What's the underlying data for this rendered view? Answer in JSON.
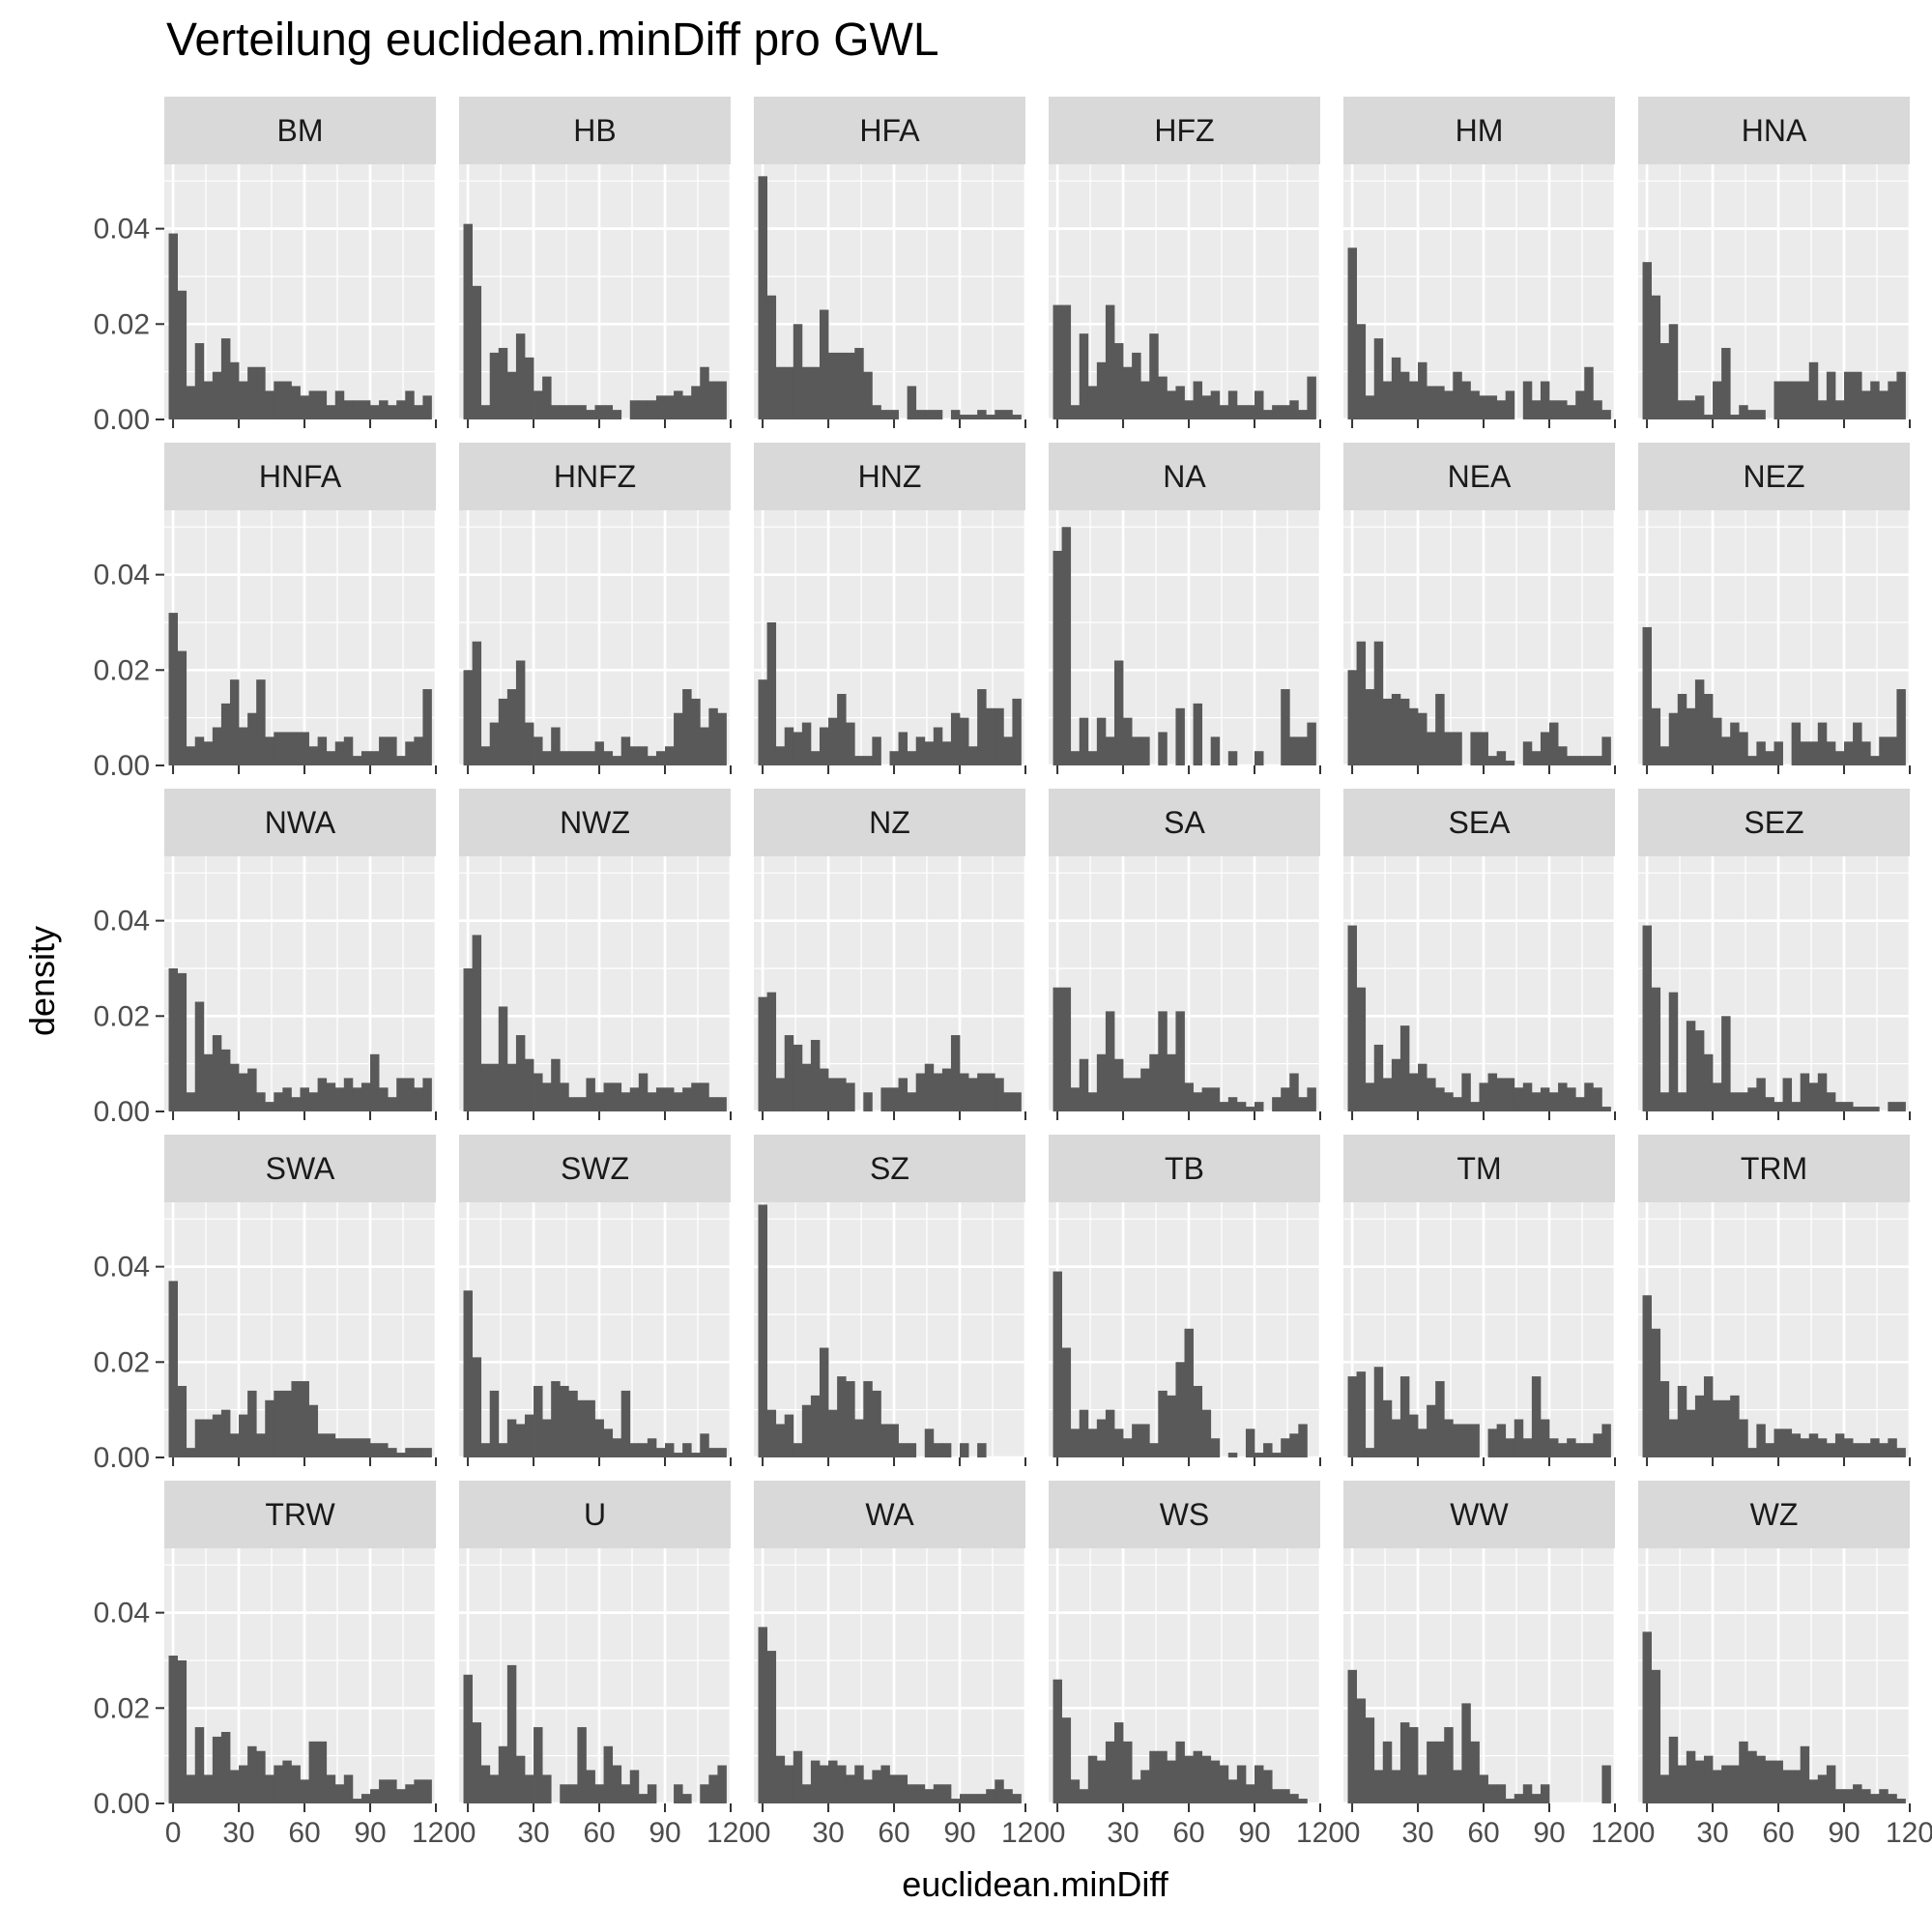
{
  "chart_data": {
    "type": "bar",
    "subtype": "faceted histogram",
    "title": "Verteilung euclidean.minDiff pro GWL",
    "xlabel": "euclidean.minDiff",
    "ylabel": "density",
    "xlim": [
      -4,
      120
    ],
    "ylim": [
      0,
      0.0535
    ],
    "x_ticks": [
      0,
      30,
      60,
      90,
      120
    ],
    "x_tick_labels": [
      "0",
      "30",
      "60",
      "90",
      "120"
    ],
    "y_ticks": [
      0,
      0.02,
      0.04
    ],
    "y_tick_labels": [
      "0.00",
      "0.02",
      "0.04"
    ],
    "bin_width": 4,
    "bin_starts": [
      -2,
      2,
      6,
      10,
      14,
      18,
      22,
      26,
      30,
      34,
      38,
      42,
      46,
      50,
      54,
      58,
      62,
      66,
      70,
      74,
      78,
      82,
      86,
      90,
      94,
      98,
      102,
      106,
      110,
      114
    ],
    "facet_cols": 6,
    "grid": "on",
    "bar_color": "#595959",
    "panel_background": "#ebebeb",
    "strip_background": "#d9d9d9",
    "facets": [
      {
        "label": "BM",
        "values": [
          0.039,
          0.027,
          0.007,
          0.016,
          0.008,
          0.01,
          0.017,
          0.012,
          0.008,
          0.011,
          0.011,
          0.006,
          0.008,
          0.008,
          0.007,
          0.005,
          0.006,
          0.006,
          0.003,
          0.006,
          0.004,
          0.004,
          0.004,
          0.003,
          0.004,
          0.003,
          0.004,
          0.006,
          0.003,
          0.005
        ]
      },
      {
        "label": "HB",
        "values": [
          0.041,
          0.028,
          0.003,
          0.014,
          0.015,
          0.01,
          0.018,
          0.013,
          0.006,
          0.009,
          0.003,
          0.003,
          0.003,
          0.003,
          0.002,
          0.003,
          0.003,
          0.002,
          0,
          0.004,
          0.004,
          0.004,
          0.005,
          0.005,
          0.006,
          0.005,
          0.007,
          0.011,
          0.008,
          0.008
        ]
      },
      {
        "label": "HFA",
        "values": [
          0.051,
          0.026,
          0.011,
          0.011,
          0.02,
          0.011,
          0.011,
          0.023,
          0.014,
          0.014,
          0.014,
          0.015,
          0.01,
          0.003,
          0.002,
          0.002,
          0,
          0.007,
          0.002,
          0.002,
          0.002,
          0,
          0.002,
          0.001,
          0.001,
          0.002,
          0.001,
          0.002,
          0.002,
          0.001
        ]
      },
      {
        "label": "HFZ",
        "values": [
          0.024,
          0.024,
          0.003,
          0.018,
          0.007,
          0.012,
          0.024,
          0.016,
          0.011,
          0.014,
          0.008,
          0.018,
          0.009,
          0.006,
          0.007,
          0.004,
          0.008,
          0.005,
          0.006,
          0.003,
          0.006,
          0.003,
          0.003,
          0.006,
          0.002,
          0.003,
          0.003,
          0.004,
          0.002,
          0.009
        ]
      },
      {
        "label": "HM",
        "values": [
          0.036,
          0.02,
          0.005,
          0.017,
          0.008,
          0.013,
          0.01,
          0.008,
          0.012,
          0.007,
          0.007,
          0.006,
          0.01,
          0.008,
          0.006,
          0.005,
          0.005,
          0.004,
          0.006,
          0,
          0.008,
          0.004,
          0.008,
          0.004,
          0.004,
          0.003,
          0.006,
          0.011,
          0.004,
          0.002
        ]
      },
      {
        "label": "HNA",
        "values": [
          0.033,
          0.026,
          0.016,
          0.02,
          0.004,
          0.004,
          0.005,
          0.001,
          0.008,
          0.015,
          0.001,
          0.003,
          0.002,
          0.002,
          0,
          0.008,
          0.008,
          0.008,
          0.008,
          0.012,
          0.004,
          0.01,
          0.004,
          0.01,
          0.01,
          0.006,
          0.008,
          0.006,
          0.008,
          0.01
        ]
      },
      {
        "label": "HNFA",
        "values": [
          0.032,
          0.024,
          0.004,
          0.006,
          0.005,
          0.008,
          0.013,
          0.018,
          0.008,
          0.011,
          0.018,
          0.006,
          0.007,
          0.007,
          0.007,
          0.007,
          0.004,
          0.006,
          0.003,
          0.005,
          0.006,
          0.002,
          0.003,
          0.003,
          0.006,
          0.006,
          0.002,
          0.005,
          0.006,
          0.016
        ]
      },
      {
        "label": "HNFZ",
        "values": [
          0.02,
          0.026,
          0.004,
          0.009,
          0.014,
          0.016,
          0.022,
          0.009,
          0.006,
          0.003,
          0.008,
          0.003,
          0.003,
          0.003,
          0.003,
          0.005,
          0.003,
          0.002,
          0.006,
          0.004,
          0.004,
          0.002,
          0.003,
          0.004,
          0.011,
          0.016,
          0.014,
          0.008,
          0.012,
          0.011
        ]
      },
      {
        "label": "HNZ",
        "values": [
          0.018,
          0.03,
          0.004,
          0.008,
          0.007,
          0.009,
          0.003,
          0.008,
          0.01,
          0.015,
          0.009,
          0.002,
          0.002,
          0.006,
          0,
          0.003,
          0.007,
          0.003,
          0.006,
          0.005,
          0.008,
          0.005,
          0.011,
          0.01,
          0.004,
          0.016,
          0.012,
          0.012,
          0.006,
          0.014
        ]
      },
      {
        "label": "NA",
        "values": [
          0.045,
          0.05,
          0.003,
          0.01,
          0.003,
          0.01,
          0.006,
          0.022,
          0.01,
          0.006,
          0.006,
          0,
          0.007,
          0,
          0.012,
          0,
          0.013,
          0,
          0.006,
          0,
          0.003,
          0,
          0,
          0.003,
          0,
          0,
          0.016,
          0.006,
          0.006,
          0.009
        ]
      },
      {
        "label": "NEA",
        "values": [
          0.02,
          0.026,
          0.016,
          0.026,
          0.014,
          0.015,
          0.014,
          0.012,
          0.011,
          0.007,
          0.015,
          0.007,
          0.007,
          0,
          0.007,
          0.007,
          0.002,
          0.003,
          0.001,
          0,
          0.005,
          0.003,
          0.007,
          0.009,
          0.004,
          0.002,
          0.002,
          0.002,
          0.002,
          0.006
        ]
      },
      {
        "label": "NEZ",
        "values": [
          0.029,
          0.012,
          0.004,
          0.011,
          0.015,
          0.012,
          0.018,
          0.015,
          0.01,
          0.006,
          0.009,
          0.007,
          0.002,
          0.005,
          0.003,
          0.005,
          0,
          0.009,
          0.005,
          0.005,
          0.009,
          0.005,
          0.003,
          0.005,
          0.009,
          0.005,
          0.002,
          0.006,
          0.006,
          0.016
        ]
      },
      {
        "label": "NWA",
        "values": [
          0.03,
          0.029,
          0.004,
          0.023,
          0.012,
          0.016,
          0.013,
          0.01,
          0.008,
          0.009,
          0.004,
          0.002,
          0.004,
          0.005,
          0.003,
          0.005,
          0.004,
          0.007,
          0.006,
          0.005,
          0.007,
          0.005,
          0.006,
          0.012,
          0.005,
          0.003,
          0.007,
          0.007,
          0.005,
          0.007
        ]
      },
      {
        "label": "NWZ",
        "values": [
          0.03,
          0.037,
          0.01,
          0.01,
          0.022,
          0.01,
          0.016,
          0.011,
          0.008,
          0.006,
          0.011,
          0.006,
          0.003,
          0.003,
          0.007,
          0.004,
          0.006,
          0.006,
          0.004,
          0.005,
          0.008,
          0.004,
          0.005,
          0.005,
          0.004,
          0.005,
          0.006,
          0.006,
          0.003,
          0.003
        ]
      },
      {
        "label": "NZ",
        "values": [
          0.024,
          0.025,
          0.007,
          0.016,
          0.014,
          0.01,
          0.015,
          0.009,
          0.007,
          0.007,
          0.006,
          0,
          0.004,
          0,
          0.005,
          0.005,
          0.007,
          0.004,
          0.008,
          0.01,
          0.008,
          0.009,
          0.016,
          0.008,
          0.007,
          0.008,
          0.008,
          0.007,
          0.004,
          0.004
        ]
      },
      {
        "label": "SA",
        "values": [
          0.026,
          0.026,
          0.005,
          0.011,
          0.004,
          0.012,
          0.021,
          0.011,
          0.007,
          0.007,
          0.009,
          0.012,
          0.021,
          0.012,
          0.021,
          0.006,
          0.004,
          0.005,
          0.005,
          0.002,
          0.003,
          0.002,
          0.001,
          0.002,
          0,
          0.003,
          0.005,
          0.008,
          0.003,
          0.005
        ]
      },
      {
        "label": "SEA",
        "values": [
          0.039,
          0.026,
          0.006,
          0.014,
          0.007,
          0.011,
          0.018,
          0.008,
          0.01,
          0.007,
          0.005,
          0.004,
          0.003,
          0.008,
          0.002,
          0.006,
          0.008,
          0.007,
          0.007,
          0.005,
          0.006,
          0.004,
          0.005,
          0.004,
          0.006,
          0.005,
          0.003,
          0.006,
          0.005,
          0.001
        ]
      },
      {
        "label": "SEZ",
        "values": [
          0.039,
          0.026,
          0.004,
          0.025,
          0.004,
          0.019,
          0.017,
          0.012,
          0.006,
          0.02,
          0.004,
          0.004,
          0.005,
          0.007,
          0.003,
          0.002,
          0.007,
          0.002,
          0.008,
          0.006,
          0.008,
          0.004,
          0.002,
          0.002,
          0.001,
          0.001,
          0.001,
          0,
          0.002,
          0.002
        ]
      },
      {
        "label": "SWA",
        "values": [
          0.037,
          0.015,
          0.002,
          0.008,
          0.008,
          0.009,
          0.01,
          0.005,
          0.009,
          0.014,
          0.005,
          0.012,
          0.014,
          0.014,
          0.016,
          0.016,
          0.011,
          0.005,
          0.005,
          0.004,
          0.004,
          0.004,
          0.004,
          0.003,
          0.003,
          0.002,
          0.001,
          0.002,
          0.002,
          0.002
        ]
      },
      {
        "label": "SWZ",
        "values": [
          0.035,
          0.021,
          0.003,
          0.014,
          0.003,
          0.008,
          0.007,
          0.009,
          0.015,
          0.008,
          0.016,
          0.015,
          0.014,
          0.012,
          0.012,
          0.008,
          0.006,
          0.004,
          0.014,
          0.003,
          0.003,
          0.004,
          0.002,
          0.003,
          0.001,
          0.003,
          0.001,
          0.005,
          0.002,
          0.002
        ]
      },
      {
        "label": "SZ",
        "values": [
          0.053,
          0.01,
          0.007,
          0.009,
          0.003,
          0.011,
          0.013,
          0.023,
          0.01,
          0.017,
          0.016,
          0.008,
          0.016,
          0.014,
          0.007,
          0.007,
          0.003,
          0.003,
          0,
          0.006,
          0.003,
          0.003,
          0,
          0.003,
          0,
          0.003,
          0,
          0,
          0,
          0
        ]
      },
      {
        "label": "TB",
        "values": [
          0.039,
          0.023,
          0.006,
          0.01,
          0.006,
          0.008,
          0.01,
          0.006,
          0.004,
          0.007,
          0.007,
          0.003,
          0.014,
          0.013,
          0.02,
          0.027,
          0.015,
          0.01,
          0.004,
          0,
          0.001,
          0,
          0.006,
          0.001,
          0.003,
          0.001,
          0.004,
          0.005,
          0.007,
          0
        ]
      },
      {
        "label": "TM",
        "values": [
          0.017,
          0.018,
          0.002,
          0.019,
          0.012,
          0.008,
          0.017,
          0.009,
          0.006,
          0.011,
          0.016,
          0.008,
          0.007,
          0.007,
          0.007,
          0,
          0.006,
          0.007,
          0.004,
          0.008,
          0.004,
          0.017,
          0.008,
          0.004,
          0.003,
          0.004,
          0.003,
          0.003,
          0.005,
          0.007
        ]
      },
      {
        "label": "TRM",
        "values": [
          0.034,
          0.027,
          0.016,
          0.008,
          0.015,
          0.01,
          0.013,
          0.017,
          0.012,
          0.012,
          0.013,
          0.008,
          0.002,
          0.007,
          0.003,
          0.006,
          0.006,
          0.005,
          0.004,
          0.005,
          0.004,
          0.003,
          0.005,
          0.004,
          0.003,
          0.003,
          0.004,
          0.003,
          0.004,
          0.002
        ]
      },
      {
        "label": "TRW",
        "values": [
          0.031,
          0.03,
          0.006,
          0.016,
          0.006,
          0.014,
          0.015,
          0.007,
          0.008,
          0.012,
          0.011,
          0.006,
          0.008,
          0.009,
          0.008,
          0.005,
          0.013,
          0.013,
          0.006,
          0.004,
          0.006,
          0.001,
          0.002,
          0.003,
          0.005,
          0.005,
          0.003,
          0.004,
          0.005,
          0.005
        ]
      },
      {
        "label": "U",
        "values": [
          0.027,
          0.017,
          0.008,
          0.006,
          0.012,
          0.029,
          0.01,
          0.006,
          0.016,
          0.006,
          0,
          0.004,
          0.004,
          0.016,
          0.007,
          0.004,
          0.012,
          0.008,
          0.004,
          0.007,
          0.002,
          0.004,
          0,
          0,
          0.004,
          0.002,
          0,
          0.004,
          0.006,
          0.008
        ]
      },
      {
        "label": "WA",
        "values": [
          0.037,
          0.032,
          0.01,
          0.008,
          0.011,
          0.004,
          0.009,
          0.008,
          0.009,
          0.008,
          0.006,
          0.008,
          0.005,
          0.007,
          0.008,
          0.006,
          0.006,
          0.004,
          0.004,
          0.003,
          0.004,
          0.004,
          0.001,
          0.002,
          0.002,
          0.002,
          0.003,
          0.005,
          0.003,
          0.002
        ]
      },
      {
        "label": "WS",
        "values": [
          0.026,
          0.018,
          0.005,
          0.003,
          0.01,
          0.009,
          0.013,
          0.017,
          0.013,
          0.005,
          0.007,
          0.011,
          0.011,
          0.009,
          0.013,
          0.01,
          0.011,
          0.01,
          0.009,
          0.008,
          0.005,
          0.008,
          0.004,
          0.008,
          0.007,
          0.003,
          0.003,
          0.002,
          0.001,
          0
        ]
      },
      {
        "label": "WW",
        "values": [
          0.028,
          0.022,
          0.018,
          0.007,
          0.013,
          0.007,
          0.017,
          0.016,
          0.006,
          0.013,
          0.013,
          0.016,
          0.007,
          0.021,
          0.013,
          0.006,
          0.004,
          0.004,
          0.001,
          0.002,
          0.004,
          0.002,
          0.004,
          0,
          0,
          0,
          0,
          0,
          0,
          0.008
        ]
      },
      {
        "label": "WZ",
        "values": [
          0.036,
          0.028,
          0.006,
          0.014,
          0.008,
          0.011,
          0.009,
          0.01,
          0.007,
          0.008,
          0.008,
          0.013,
          0.011,
          0.01,
          0.009,
          0.009,
          0.007,
          0.007,
          0.012,
          0.005,
          0.006,
          0.008,
          0.003,
          0.003,
          0.004,
          0.003,
          0.002,
          0.003,
          0.002,
          0.001
        ]
      }
    ]
  }
}
